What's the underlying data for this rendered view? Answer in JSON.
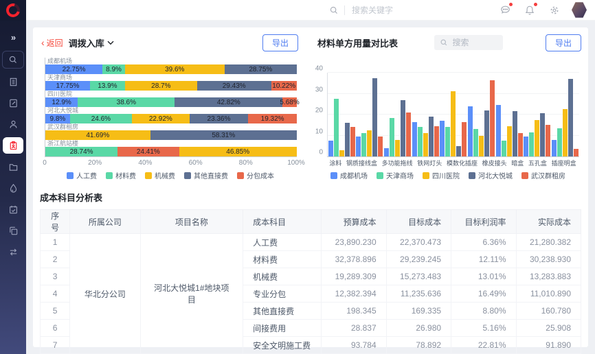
{
  "header": {
    "search_placeholder": "搜索关键字"
  },
  "sidebar": {
    "icons": [
      "expand",
      "search",
      "company",
      "document",
      "user",
      "project-active",
      "folder",
      "water-drop",
      "calendar",
      "copy",
      "transfer"
    ]
  },
  "left_chart": {
    "back_label": "返回",
    "title": "调拨入库",
    "export_label": "导出",
    "type": "bar-horizontal-stacked",
    "x_ticks": [
      "0",
      "20%",
      "40%",
      "60%",
      "80%",
      "100%"
    ],
    "legend": [
      {
        "label": "人工费",
        "color": "#5B8FF9"
      },
      {
        "label": "材料费",
        "color": "#5AD8A6"
      },
      {
        "label": "机械费",
        "color": "#F6BD16"
      },
      {
        "label": "其他直接费",
        "color": "#5D7092"
      },
      {
        "label": "分包成本",
        "color": "#E8684A"
      }
    ],
    "rows": [
      {
        "category": "成都机场",
        "segments": [
          {
            "series": "人工费",
            "value": 22.75,
            "label": "22.75%"
          },
          {
            "series": "材料费",
            "value": 8.9,
            "label": "8.9%"
          },
          {
            "series": "机械费",
            "value": 39.6,
            "label": "39.6%"
          },
          {
            "series": "其他直接费",
            "value": 28.75,
            "label": "28.75%"
          }
        ]
      },
      {
        "category": "天津商场",
        "segments": [
          {
            "series": "人工费",
            "value": 17.75,
            "label": "17.75%"
          },
          {
            "series": "材料费",
            "value": 13.9,
            "label": "13.9%"
          },
          {
            "series": "机械费",
            "value": 28.7,
            "label": "28.7%"
          },
          {
            "series": "其他直接费",
            "value": 29.43,
            "label": "29.43%"
          },
          {
            "series": "分包成本",
            "value": 10.22,
            "label": "10.22%"
          }
        ]
      },
      {
        "category": "四川医院",
        "segments": [
          {
            "series": "人工费",
            "value": 12.9,
            "label": "12.9%"
          },
          {
            "series": "材料费",
            "value": 38.6,
            "label": "38.6%"
          },
          {
            "series": "其他直接费",
            "value": 42.82,
            "label": "42.82%"
          },
          {
            "series": "分包成本",
            "value": 5.68,
            "label": "5.68%"
          }
        ]
      },
      {
        "category": "河北大悦城",
        "segments": [
          {
            "series": "人工费",
            "value": 9.8,
            "label": "9.8%"
          },
          {
            "series": "材料费",
            "value": 24.6,
            "label": "24.6%"
          },
          {
            "series": "机械费",
            "value": 22.92,
            "label": "22.92%"
          },
          {
            "series": "其他直接费",
            "value": 23.36,
            "label": "23.36%"
          },
          {
            "series": "分包成本",
            "value": 19.32,
            "label": "19.32%"
          }
        ]
      },
      {
        "category": "武汉群租房",
        "segments": [
          {
            "series": "机械费",
            "value": 41.69,
            "label": "41.69%"
          },
          {
            "series": "其他直接费",
            "value": 58.31,
            "label": "58.31%"
          }
        ]
      },
      {
        "category": "浙江航站楼",
        "segments": [
          {
            "series": "材料费",
            "value": 28.74,
            "label": "28.74%"
          },
          {
            "series": "分包成本",
            "value": 24.41,
            "label": "24.41%"
          },
          {
            "series": "机械费",
            "value": 46.85,
            "label": "46.85%"
          }
        ]
      }
    ]
  },
  "right_chart": {
    "title": "材料单方用量对比表",
    "search_placeholder": "搜索",
    "export_label": "导出",
    "type": "bar",
    "ylim": [
      0,
      40
    ],
    "y_ticks": [
      0,
      10,
      20,
      30,
      40
    ],
    "categories": [
      "涂料",
      "钢质接线盒",
      "多功能拖线",
      "铁网灯头",
      "模数化插座",
      "橡皮接头",
      "暗盒",
      "五孔盒",
      "插座明盒"
    ],
    "series": [
      {
        "name": "成都机场",
        "color": "#5B8FF9",
        "values": [
          7.5,
          9.5,
          4,
          16.5,
          17,
          24,
          24.5,
          9.5,
          8
        ]
      },
      {
        "name": "天津商场",
        "color": "#5AD8A6",
        "values": [
          27.5,
          11,
          18.5,
          14,
          14,
          13,
          7.5,
          11.5,
          13.5
        ]
      },
      {
        "name": "四川医院",
        "color": "#F6BD16",
        "values": [
          3,
          12.5,
          8,
          11,
          31,
          10,
          14.5,
          17.5,
          22.5
        ]
      },
      {
        "name": "河北大悦城",
        "color": "#5D7092",
        "values": [
          16,
          37.5,
          27,
          19,
          5,
          22,
          21.5,
          20.5,
          37
        ]
      },
      {
        "name": "武汉群租房",
        "color": "#E8684A",
        "values": [
          14,
          9.5,
          21,
          14.5,
          16.5,
          36.5,
          11,
          15,
          3.5
        ]
      }
    ]
  },
  "table": {
    "title": "成本科目分析表",
    "columns": [
      "序号",
      "所属公司",
      "项目名称",
      "成本科目",
      "预算成本",
      "目标成本",
      "目标利润率",
      "实际成本"
    ],
    "company": "华北分公司",
    "project": "河北大悦城1#地块项目",
    "rows": [
      [
        "1",
        "人工费",
        "23,890.230",
        "22,370.473",
        "6.36%",
        "21,280.382"
      ],
      [
        "2",
        "材料费",
        "32,378.896",
        "29,239.245",
        "12.11%",
        "30,238.930"
      ],
      [
        "3",
        "机械费",
        "19,289.309",
        "15,273.483",
        "13.01%",
        "13,283.883"
      ],
      [
        "4",
        "专业分包",
        "12,382.394",
        "11,235.636",
        "16.49%",
        "11,010.890"
      ],
      [
        "5",
        "其他直接费",
        "198.345",
        "169.335",
        "8.80%",
        "160.780"
      ],
      [
        "6",
        "间接费用",
        "28.837",
        "26.980",
        "5.16%",
        "25.908"
      ],
      [
        "7",
        "安全文明施工费",
        "93.784",
        "78.892",
        "22.81%",
        "91.890"
      ]
    ]
  }
}
